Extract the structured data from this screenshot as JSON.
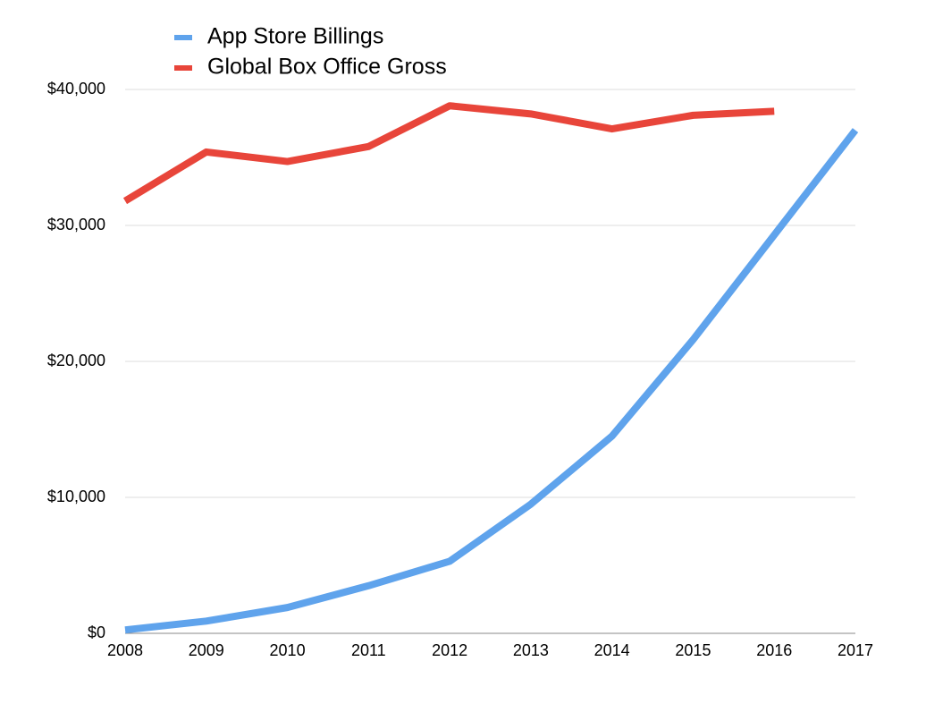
{
  "chart_data": {
    "type": "line",
    "categories": [
      "2008",
      "2009",
      "2010",
      "2011",
      "2012",
      "2013",
      "2014",
      "2015",
      "2016",
      "2017"
    ],
    "series": [
      {
        "name": "App Store Billings",
        "color": "#5fa3ec",
        "values": [
          250,
          900,
          1900,
          3500,
          5300,
          9500,
          14500,
          21600,
          29300,
          37000
        ]
      },
      {
        "name": "Global Box Office Gross",
        "color": "#e8453a",
        "values": [
          31800,
          35400,
          34700,
          35800,
          38800,
          38200,
          37100,
          38100,
          38400,
          null
        ]
      }
    ],
    "ylim": [
      0,
      40000
    ],
    "yticks": [
      {
        "value": 0,
        "label": "$0"
      },
      {
        "value": 10000,
        "label": "$10,000"
      },
      {
        "value": 20000,
        "label": "$20,000"
      },
      {
        "value": 30000,
        "label": "$30,000"
      },
      {
        "value": 40000,
        "label": "$40,000"
      }
    ],
    "grid": true
  }
}
